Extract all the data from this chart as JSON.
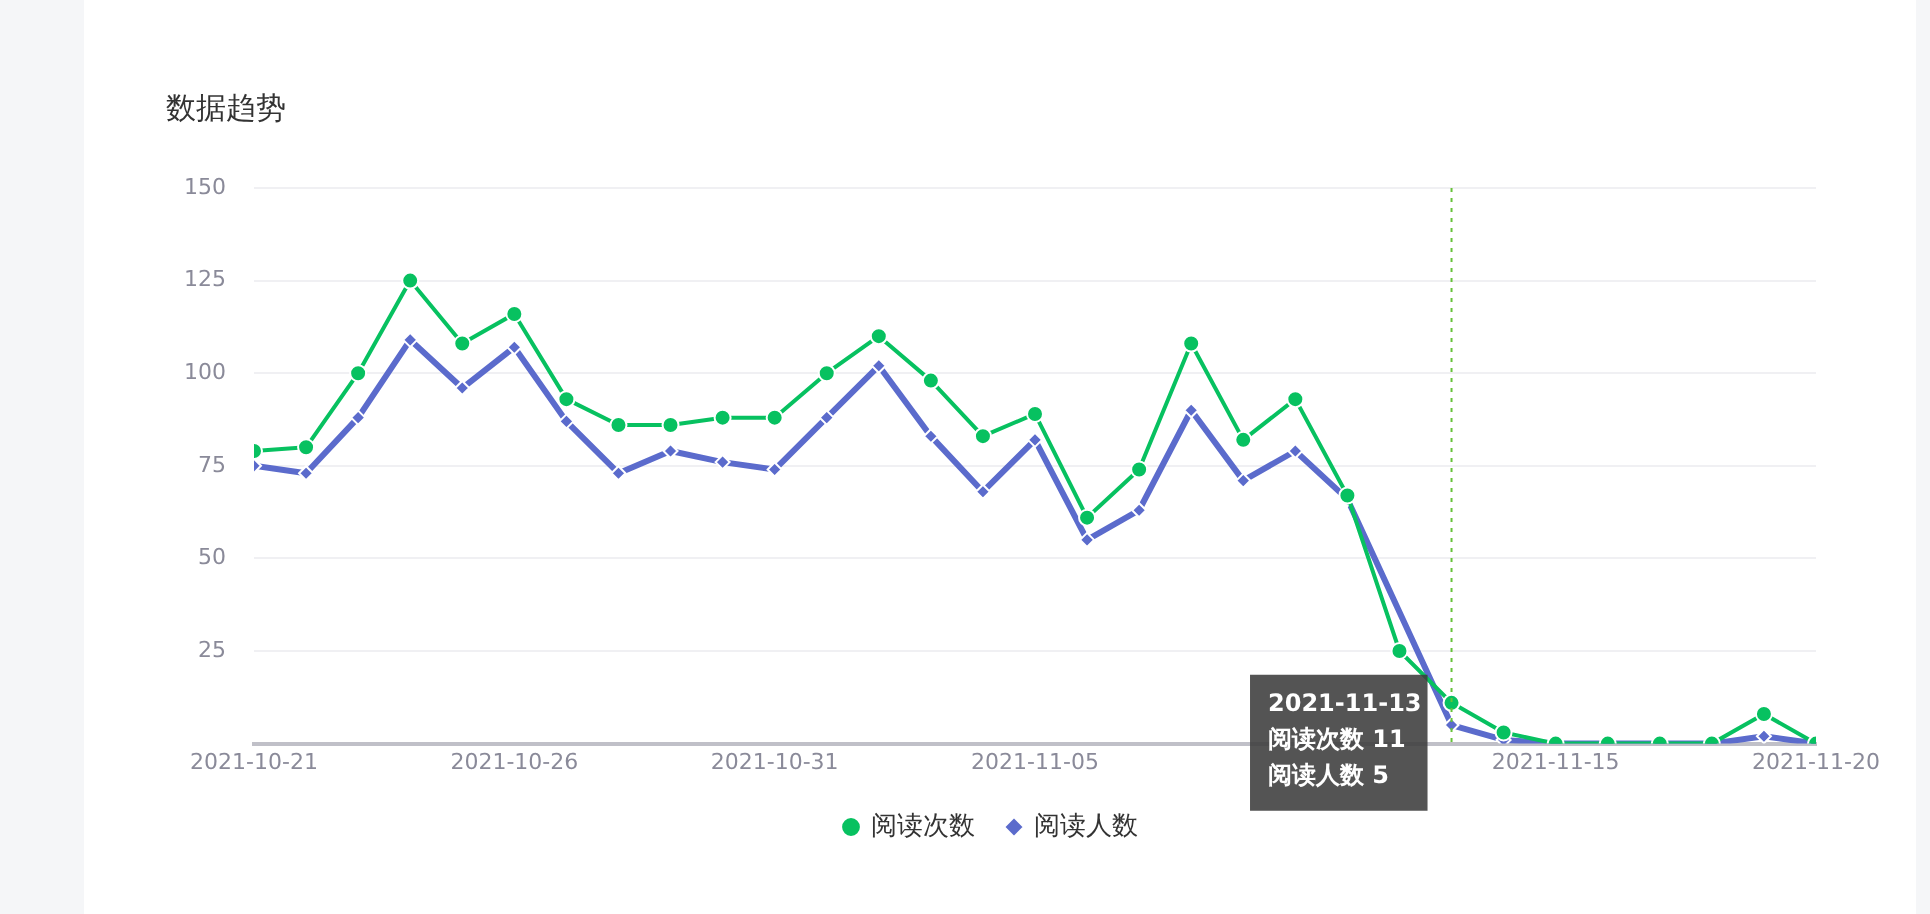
{
  "chart_data": {
    "type": "line",
    "title": "数据趋势",
    "x": [
      "2021-10-21",
      "2021-10-22",
      "2021-10-23",
      "2021-10-24",
      "2021-10-25",
      "2021-10-26",
      "2021-10-27",
      "2021-10-28",
      "2021-10-29",
      "2021-10-30",
      "2021-10-31",
      "2021-11-01",
      "2021-11-02",
      "2021-11-03",
      "2021-11-04",
      "2021-11-05",
      "2021-11-06",
      "2021-11-07",
      "2021-11-08",
      "2021-11-09",
      "2021-11-10",
      "2021-11-11",
      "2021-11-12",
      "2021-11-13",
      "2021-11-14",
      "2021-11-15",
      "2021-11-16",
      "2021-11-17",
      "2021-11-18",
      "2021-11-19",
      "2021-11-20"
    ],
    "series": [
      {
        "name": "阅读次数",
        "color": "#07c160",
        "marker": "circle",
        "values": [
          79,
          80,
          100,
          125,
          108,
          116,
          93,
          86,
          86,
          88,
          88,
          100,
          110,
          98,
          83,
          89,
          61,
          74,
          108,
          82,
          93,
          67,
          25,
          11,
          3,
          0,
          0,
          0,
          0,
          8,
          0
        ]
      },
      {
        "name": "阅读人数",
        "color": "#5b6bcc",
        "marker": "diamond",
        "values": [
          75,
          73,
          88,
          109,
          96,
          107,
          87,
          73,
          79,
          76,
          74,
          88,
          102,
          83,
          68,
          82,
          55,
          63,
          90,
          71,
          79,
          66,
          null,
          5,
          1,
          0,
          0,
          0,
          0,
          2,
          0
        ]
      }
    ],
    "xlim": [
      "2021-10-21",
      "2021-11-20"
    ],
    "xticks": [
      {
        "value": "2021-10-21",
        "label": "2021-10-21"
      },
      {
        "value": "2021-10-26",
        "label": "2021-10-26"
      },
      {
        "value": "2021-10-31",
        "label": "2021-10-31"
      },
      {
        "value": "2021-11-05",
        "label": "2021-11-05"
      },
      {
        "value": "2021-11-15",
        "label": "2021-11-15"
      },
      {
        "value": "2021-11-20",
        "label": "2021-11-20"
      }
    ],
    "ylim": [
      0,
      150
    ],
    "yticks": [
      {
        "value": 0,
        "label": null
      },
      25,
      50,
      75,
      100,
      125,
      150
    ],
    "grid": "y",
    "legend": "bottom",
    "line_style": "solid",
    "ref_lines": [
      {
        "axis": "x",
        "value": "2021-11-13",
        "color": "#67c23a",
        "line_style": "dotted"
      }
    ],
    "annotations": [
      {
        "text": "2021-11-13\n阅读次数 11\n阅读人数 5",
        "x": "2021-11-13",
        "y": 11
      }
    ]
  }
}
